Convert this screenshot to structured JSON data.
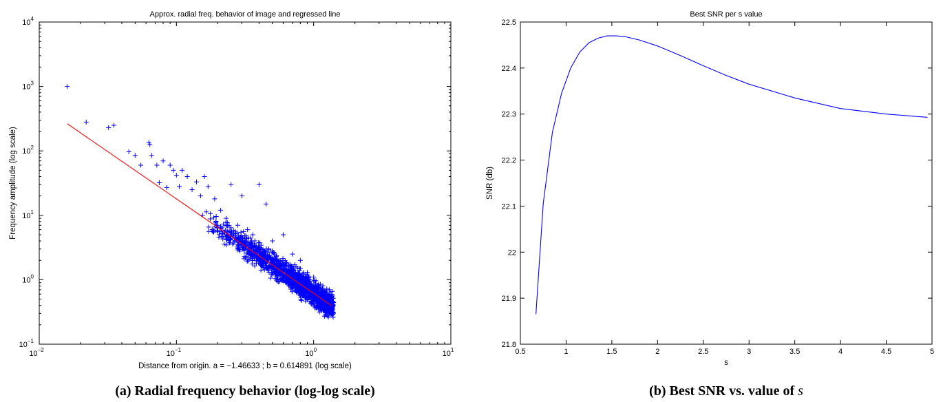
{
  "captions": {
    "a": "(a) Radial frequency behavior (log-log scale)",
    "b_prefix": "(b) Best SNR vs. value of ",
    "b_symbol": "s"
  },
  "chart_data": [
    {
      "type": "scatter",
      "title": "Approx. radial freq. behavior of image and regressed line",
      "xlabel": "Distance from origin. a = −1.46633 ; b = 0.614891 (log scale)",
      "ylabel": "Frequency amplitude (log scale)",
      "x_scale": "log",
      "y_scale": "log",
      "xlim": [
        0.01,
        10
      ],
      "ylim": [
        0.1,
        10000
      ],
      "x_ticks": [
        {
          "value": 0.01,
          "base": "10",
          "exp": "−2"
        },
        {
          "value": 0.1,
          "base": "10",
          "exp": "−1"
        },
        {
          "value": 1,
          "base": "10",
          "exp": "0"
        },
        {
          "value": 10,
          "base": "10",
          "exp": "1"
        }
      ],
      "y_ticks": [
        {
          "value": 0.1,
          "base": "10",
          "exp": "−1"
        },
        {
          "value": 1,
          "base": "10",
          "exp": "0"
        },
        {
          "value": 10,
          "base": "10",
          "exp": "1"
        },
        {
          "value": 100,
          "base": "10",
          "exp": "2"
        },
        {
          "value": 1000,
          "base": "10",
          "exp": "3"
        },
        {
          "value": 10000,
          "base": "10",
          "exp": "4"
        }
      ],
      "grid": false,
      "series": [
        {
          "kind": "scatter",
          "marker": "+",
          "color": "#0000ff",
          "points": [
            [
              0.016,
              1000
            ],
            [
              0.022,
              280
            ],
            [
              0.032,
              230
            ],
            [
              0.035,
              250
            ],
            [
              0.045,
              97
            ],
            [
              0.05,
              85
            ],
            [
              0.055,
              60
            ],
            [
              0.063,
              135
            ],
            [
              0.064,
              125
            ],
            [
              0.066,
              85
            ],
            [
              0.072,
              60
            ],
            [
              0.075,
              32
            ],
            [
              0.08,
              70
            ],
            [
              0.085,
              27
            ],
            [
              0.09,
              60
            ],
            [
              0.095,
              50
            ],
            [
              0.1,
              42
            ],
            [
              0.105,
              28
            ],
            [
              0.11,
              50
            ],
            [
              0.12,
              40
            ],
            [
              0.13,
              25
            ],
            [
              0.14,
              33
            ],
            [
              0.15,
              20
            ],
            [
              0.155,
              10
            ],
            [
              0.16,
              40
            ],
            [
              0.17,
              28
            ],
            [
              0.19,
              18
            ],
            [
              0.2,
              7
            ],
            [
              0.21,
              12
            ],
            [
              0.23,
              9
            ],
            [
              0.24,
              5.5
            ],
            [
              0.25,
              30
            ],
            [
              0.28,
              7
            ],
            [
              0.3,
              20
            ],
            [
              0.33,
              6
            ],
            [
              0.36,
              5
            ],
            [
              0.4,
              30
            ],
            [
              0.45,
              15
            ],
            [
              0.5,
              4
            ],
            [
              0.6,
              5
            ],
            [
              0.7,
              2.5
            ],
            [
              0.8,
              2
            ],
            [
              0.9,
              1.3
            ],
            [
              0.95,
              0.8
            ],
            [
              1.0,
              1.1
            ],
            [
              1.1,
              0.75
            ],
            [
              1.2,
              0.55
            ],
            [
              1.3,
              0.7
            ],
            [
              1.33,
              0.34
            ]
          ],
          "dense_band": {
            "x_range": [
              0.15,
              1.4
            ],
            "line_a": -1.46633,
            "line_b": 0.614891,
            "spread_decades": 0.28,
            "count": 1600
          }
        },
        {
          "kind": "line",
          "color": "#ff0000",
          "x_range": [
            0.016,
            1.35
          ],
          "a": -1.46633,
          "b": 0.614891
        }
      ]
    },
    {
      "type": "line",
      "title": "Best SNR per s value",
      "xlabel": "s",
      "ylabel": "SNR (db)",
      "xlim": [
        0.5,
        5
      ],
      "ylim": [
        21.8,
        22.5
      ],
      "x_ticks": [
        "0.5",
        "1",
        "1.5",
        "2",
        "2.5",
        "3",
        "3.5",
        "4",
        "4.5",
        "5"
      ],
      "y_ticks": [
        "21.8",
        "21.9",
        "22",
        "22.1",
        "22.2",
        "22.3",
        "22.4",
        "22.5"
      ],
      "grid": false,
      "series": [
        {
          "color": "#0000ff",
          "x": [
            0.67,
            0.75,
            0.85,
            0.95,
            1.05,
            1.15,
            1.25,
            1.35,
            1.45,
            1.55,
            1.65,
            1.8,
            2.0,
            2.25,
            2.5,
            2.75,
            3.0,
            3.5,
            4.0,
            4.5,
            4.95
          ],
          "y": [
            21.865,
            22.105,
            22.26,
            22.345,
            22.4,
            22.435,
            22.455,
            22.465,
            22.47,
            22.47,
            22.468,
            22.461,
            22.448,
            22.427,
            22.405,
            22.384,
            22.365,
            22.335,
            22.312,
            22.3,
            22.293
          ]
        }
      ]
    }
  ]
}
